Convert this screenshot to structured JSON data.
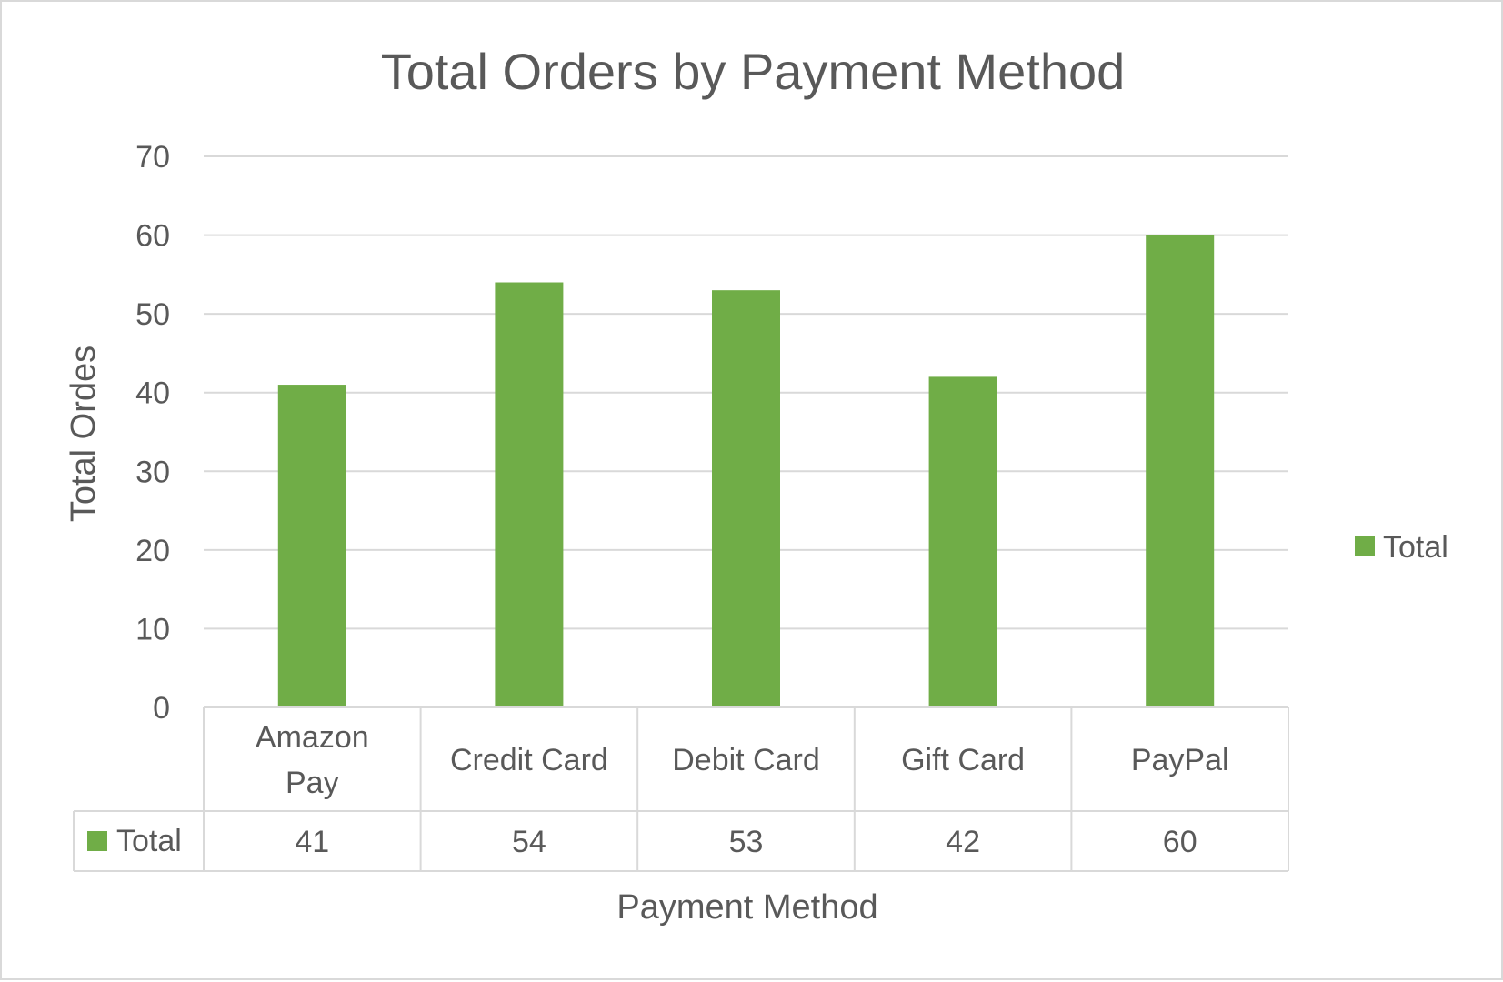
{
  "chart_data": {
    "type": "bar",
    "title": "Total Orders by Payment Method",
    "xlabel": "Payment Method",
    "ylabel": "Total Ordes",
    "categories": [
      "Amazon Pay",
      "Credit Card",
      "Debit Card",
      "Gift Card",
      "PayPal"
    ],
    "category_lines": [
      [
        "Amazon",
        "Pay"
      ],
      [
        "Credit Card"
      ],
      [
        "Debit Card"
      ],
      [
        "Gift Card"
      ],
      [
        "PayPal"
      ]
    ],
    "series": [
      {
        "name": "Total",
        "values": [
          41,
          54,
          53,
          42,
          60
        ],
        "color": "#70ad47"
      }
    ],
    "ylim": [
      0,
      70
    ],
    "yticks": [
      0,
      10,
      20,
      30,
      40,
      50,
      60,
      70
    ],
    "grid": true,
    "legend_position": "right",
    "data_table": true
  }
}
